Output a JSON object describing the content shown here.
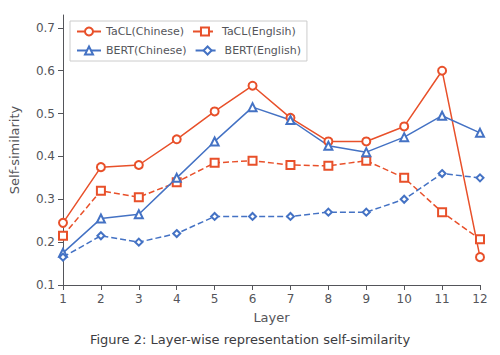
{
  "chart_data": {
    "type": "line",
    "title": "Figure 2: Layer-wise representation self-similarity",
    "xlabel": "Layer",
    "ylabel": "Self-similarity",
    "x": [
      1,
      2,
      3,
      4,
      5,
      6,
      7,
      8,
      9,
      10,
      11,
      12
    ],
    "series": [
      {
        "name": "TaCL(Chinese)",
        "color": "#E8502A",
        "marker": "circle",
        "line_style": "solid",
        "values": [
          0.245,
          0.375,
          0.38,
          0.44,
          0.505,
          0.565,
          0.49,
          0.435,
          0.435,
          0.47,
          0.6,
          0.165
        ]
      },
      {
        "name": "TaCL(Englsih)",
        "color": "#E8502A",
        "marker": "square",
        "line_style": "dashed",
        "values": [
          0.215,
          0.32,
          0.305,
          0.34,
          0.385,
          0.39,
          0.38,
          0.378,
          0.39,
          0.35,
          0.27,
          0.207
        ]
      },
      {
        "name": "BERT(Chinese)",
        "color": "#4472C4",
        "marker": "triangle",
        "line_style": "solid",
        "values": [
          0.175,
          0.255,
          0.265,
          0.35,
          0.435,
          0.515,
          0.485,
          0.425,
          0.41,
          0.445,
          0.495,
          0.455
        ]
      },
      {
        "name": "BERT(English)",
        "color": "#4472C4",
        "marker": "diamond",
        "line_style": "dashed",
        "values": [
          0.165,
          0.215,
          0.2,
          0.22,
          0.26,
          0.26,
          0.26,
          0.27,
          0.27,
          0.3,
          0.36,
          0.35
        ]
      }
    ],
    "xlim": [
      1,
      12
    ],
    "xticks": [
      1,
      2,
      3,
      4,
      5,
      6,
      7,
      8,
      9,
      10,
      11,
      12
    ],
    "ylim": [
      0.1,
      0.73
    ],
    "yticks": [
      0.1,
      0.2,
      0.3,
      0.4,
      0.5,
      0.6,
      0.7
    ],
    "grid": false,
    "legend": "upper left"
  }
}
